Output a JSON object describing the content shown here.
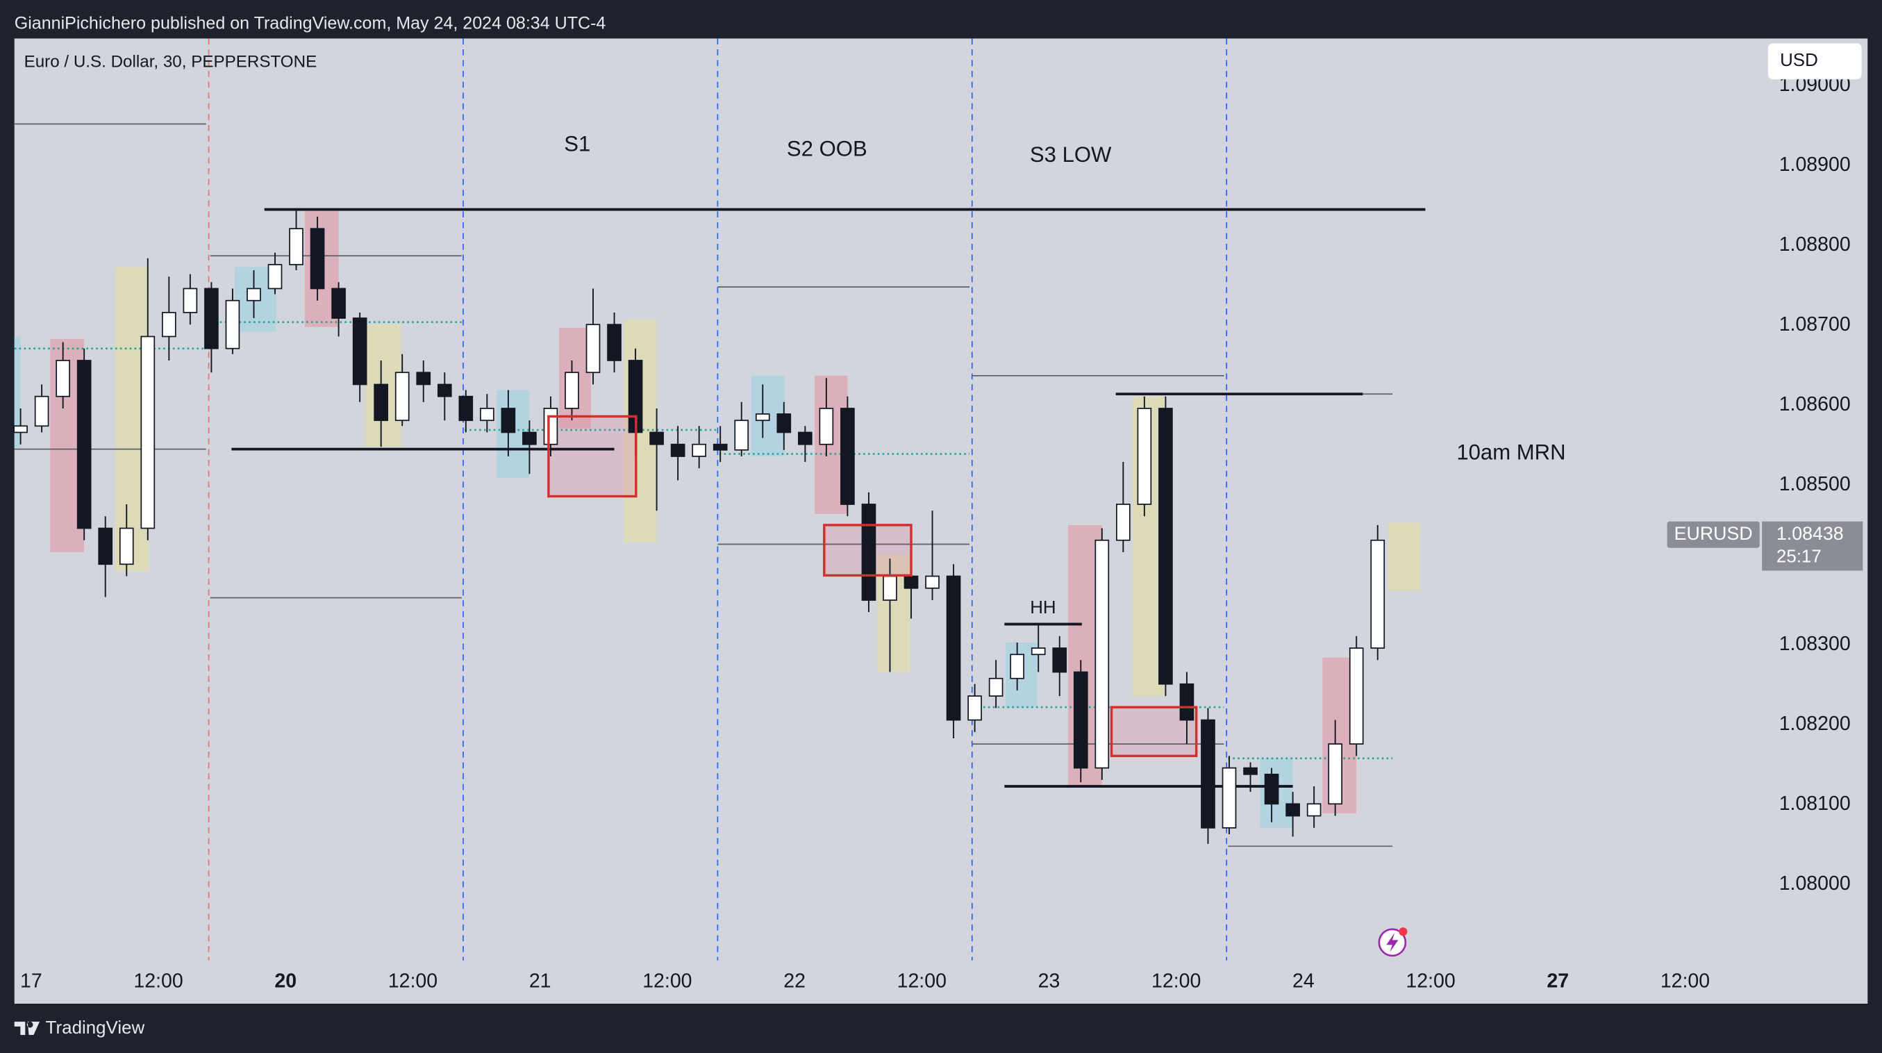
{
  "header": {
    "publisher": "GianniPichichero published on TradingView.com, May 24, 2024 08:34 UTC-4",
    "brand": "TradingView"
  },
  "chart_data": {
    "type": "candlestick",
    "title": "Euro / U.S. Dollar, 30, PEPPERSTONE",
    "currency": "USD",
    "symbol": "EURUSD",
    "last_price": 1.08438,
    "countdown": "25:17",
    "up_color": "#ffffff",
    "down_color": "#131722",
    "xlim": [
      -1.58,
      163.25
    ],
    "ylim": [
      1.07905,
      1.09059
    ],
    "xticks": [
      {
        "value": 0,
        "label": "17"
      },
      {
        "value": 12,
        "label": "12:00"
      },
      {
        "value": 24,
        "label": "20",
        "bold": true
      },
      {
        "value": 36,
        "label": "12:00"
      },
      {
        "value": 48,
        "label": "21"
      },
      {
        "value": 60,
        "label": "12:00"
      },
      {
        "value": 72,
        "label": "22"
      },
      {
        "value": 84,
        "label": "12:00"
      },
      {
        "value": 96,
        "label": "23"
      },
      {
        "value": 108,
        "label": "12:00"
      },
      {
        "value": 120,
        "label": "24"
      },
      {
        "value": 132,
        "label": "12:00"
      },
      {
        "value": 144,
        "label": "27",
        "bold": true
      },
      {
        "value": 156,
        "label": "12:00"
      }
    ],
    "yticks": [
      {
        "value": 1.08,
        "label": "1.08000"
      },
      {
        "value": 1.081,
        "label": "1.08100"
      },
      {
        "value": 1.082,
        "label": "1.08200"
      },
      {
        "value": 1.083,
        "label": "1.08300"
      },
      {
        "value": 1.084,
        "label": "1.08400"
      },
      {
        "value": 1.085,
        "label": "1.08500"
      },
      {
        "value": 1.086,
        "label": "1.08600"
      },
      {
        "value": 1.087,
        "label": "1.08700"
      },
      {
        "value": 1.088,
        "label": "1.08800"
      },
      {
        "value": 1.089,
        "label": "1.08900"
      },
      {
        "value": 1.09,
        "label": "1.09000"
      }
    ],
    "x": [
      -1,
      1,
      3,
      5,
      7,
      9,
      11,
      13,
      15,
      17,
      19,
      21,
      23,
      25,
      27,
      29,
      31,
      33,
      35,
      37,
      39,
      41,
      43,
      45,
      47,
      49,
      51,
      53,
      55,
      57,
      59,
      61,
      63,
      65,
      67,
      69,
      71,
      73,
      75,
      77,
      79,
      81,
      83,
      85,
      87,
      89,
      91,
      93,
      95,
      97,
      99,
      101,
      103,
      105,
      107,
      109,
      111,
      113,
      115,
      117,
      119,
      121,
      123,
      125,
      127
    ],
    "open": [
      1.08566,
      1.08574,
      1.08611,
      1.08656,
      1.08446,
      1.08401,
      1.08446,
      1.08686,
      1.08716,
      1.08746,
      1.08671,
      1.08731,
      1.08746,
      1.08776,
      1.08821,
      1.08746,
      1.08709,
      1.08626,
      1.08581,
      1.08641,
      1.08626,
      1.08611,
      1.08581,
      1.08596,
      1.08566,
      1.08551,
      1.08596,
      1.08641,
      1.08701,
      1.08656,
      1.08566,
      1.08551,
      1.08536,
      1.08551,
      1.08544,
      1.08581,
      1.08589,
      1.08566,
      1.08551,
      1.08596,
      1.08476,
      1.08356,
      1.08386,
      1.08371,
      1.08386,
      1.08206,
      1.08236,
      1.08258,
      1.08288,
      1.08296,
      1.08266,
      1.08146,
      1.08431,
      1.08476,
      1.08596,
      1.08251,
      1.08206,
      1.08071,
      1.08146,
      1.08138,
      1.08101,
      1.08086,
      1.08101,
      1.08176,
      1.08296
    ],
    "high": [
      1.08596,
      1.08626,
      1.08679,
      1.08671,
      1.08461,
      1.08476,
      1.08784,
      1.08761,
      1.08764,
      1.08754,
      1.08746,
      1.08769,
      1.08791,
      1.08844,
      1.08836,
      1.08754,
      1.08716,
      1.08656,
      1.08664,
      1.08656,
      1.08641,
      1.08619,
      1.08614,
      1.08619,
      1.08581,
      1.08611,
      1.08656,
      1.08746,
      1.08716,
      1.08671,
      1.08596,
      1.08574,
      1.08574,
      1.08574,
      1.08604,
      1.08626,
      1.08604,
      1.08574,
      1.08634,
      1.08611,
      1.08491,
      1.08408,
      1.08416,
      1.08468,
      1.08401,
      1.08251,
      1.08281,
      1.08303,
      1.08326,
      1.08311,
      1.08281,
      1.08446,
      1.08529,
      1.08611,
      1.08611,
      1.08266,
      1.08221,
      1.08161,
      1.08153,
      1.08146,
      1.08116,
      1.08123,
      1.08206,
      1.08311,
      1.0845
    ],
    "low": [
      1.08551,
      1.08566,
      1.08596,
      1.08431,
      1.0836,
      1.08386,
      1.08431,
      1.08656,
      1.08701,
      1.08641,
      1.08664,
      1.08709,
      1.08739,
      1.08769,
      1.08731,
      1.08686,
      1.08604,
      1.08548,
      1.08574,
      1.08604,
      1.08581,
      1.08566,
      1.08566,
      1.08536,
      1.08514,
      1.08536,
      1.08581,
      1.08626,
      1.08641,
      1.08536,
      1.08468,
      1.08506,
      1.08521,
      1.08529,
      1.08536,
      1.08559,
      1.08544,
      1.08529,
      1.08536,
      1.08461,
      1.08341,
      1.08266,
      1.08333,
      1.08356,
      1.08183,
      1.08191,
      1.08221,
      1.08243,
      1.08266,
      1.08236,
      1.08128,
      1.08131,
      1.08416,
      1.08461,
      1.08236,
      1.08176,
      1.08051,
      1.08063,
      1.08116,
      1.08078,
      1.0806,
      1.08071,
      1.08086,
      1.08161,
      1.08281
    ],
    "close": [
      1.08574,
      1.08611,
      1.08656,
      1.08446,
      1.08401,
      1.08446,
      1.08686,
      1.08716,
      1.08746,
      1.08671,
      1.08731,
      1.08746,
      1.08776,
      1.08821,
      1.08746,
      1.08709,
      1.08626,
      1.08581,
      1.08641,
      1.08626,
      1.08611,
      1.08581,
      1.08596,
      1.08566,
      1.08551,
      1.08596,
      1.08641,
      1.08701,
      1.08656,
      1.08566,
      1.08551,
      1.08536,
      1.08551,
      1.08544,
      1.08581,
      1.08589,
      1.08566,
      1.08551,
      1.08596,
      1.08476,
      1.08356,
      1.08386,
      1.08371,
      1.08386,
      1.08206,
      1.08236,
      1.08258,
      1.08288,
      1.08296,
      1.08266,
      1.08146,
      1.08431,
      1.08476,
      1.08596,
      1.08251,
      1.08206,
      1.08071,
      1.08146,
      1.08138,
      1.08101,
      1.08086,
      1.08101,
      1.08176,
      1.08296,
      1.08431
    ],
    "session_breaks": [
      {
        "x": 16.75,
        "color": "#e57373"
      },
      {
        "x": 40.75,
        "color": "#2962ff"
      },
      {
        "x": 64.75,
        "color": "#2962ff"
      },
      {
        "x": 88.75,
        "color": "#2962ff"
      },
      {
        "x": 112.75,
        "color": "#2962ff"
      }
    ],
    "levels": [
      {
        "price": 1.08952,
        "from": -1.58,
        "to": 16.5,
        "style": "thin"
      },
      {
        "price": 1.08845,
        "from": 22,
        "to": 131.5,
        "style": "thick"
      },
      {
        "price": 1.08787,
        "from": 16.9,
        "to": 40.6,
        "style": "thin"
      },
      {
        "price": 1.08545,
        "from": -1.58,
        "to": 16.5,
        "style": "thin"
      },
      {
        "price": 1.08545,
        "from": 18.9,
        "to": 55,
        "style": "thick"
      },
      {
        "price": 1.08359,
        "from": 16.9,
        "to": 40.6,
        "style": "thin"
      },
      {
        "price": 1.08748,
        "from": 64.75,
        "to": 88.5,
        "style": "thin"
      },
      {
        "price": 1.08426,
        "from": 64.75,
        "to": 88.5,
        "style": "thin"
      },
      {
        "price": 1.08637,
        "from": 88.75,
        "to": 112.5,
        "style": "thin"
      },
      {
        "price": 1.08614,
        "from": 102.3,
        "to": 125.6,
        "style": "thick"
      },
      {
        "price": 1.08614,
        "from": 125.6,
        "to": 128.4,
        "style": "thin"
      },
      {
        "price": 1.08176,
        "from": 88.75,
        "to": 112.5,
        "style": "thin"
      },
      {
        "price": 1.08326,
        "from": 91.8,
        "to": 99.1,
        "style": "thick"
      },
      {
        "price": 1.08123,
        "from": 91.8,
        "to": 119,
        "style": "thick"
      },
      {
        "price": 1.08048,
        "from": 112.9,
        "to": 128.4,
        "style": "thin"
      },
      {
        "price": 1.08671,
        "from": -1.58,
        "to": 16.5,
        "style": "dotted"
      },
      {
        "price": 1.08704,
        "from": 16.9,
        "to": 40.6,
        "style": "dotted"
      },
      {
        "price": 1.08569,
        "from": 40.9,
        "to": 64.6,
        "style": "dotted"
      },
      {
        "price": 1.08539,
        "from": 64.9,
        "to": 88.5,
        "style": "dotted"
      },
      {
        "price": 1.08222,
        "from": 88.9,
        "to": 112.5,
        "style": "dotted"
      },
      {
        "price": 1.08158,
        "from": 112.9,
        "to": 128.4,
        "style": "dotted"
      }
    ],
    "zones": [
      {
        "from": -1.58,
        "to": -1,
        "low": 1.08547,
        "high": 1.08686,
        "color": "#b4d3e0"
      },
      {
        "from": 1.8,
        "to": 5,
        "low": 1.08416,
        "high": 1.08683,
        "color": "#dbb0bb"
      },
      {
        "from": 7.9,
        "to": 11.1,
        "low": 1.08392,
        "high": 1.08773,
        "color": "#dcdab8"
      },
      {
        "from": 19.2,
        "to": 23.1,
        "low": 1.08692,
        "high": 1.08773,
        "color": "#b4d3e0"
      },
      {
        "from": 25.8,
        "to": 29,
        "low": 1.08698,
        "high": 1.08844,
        "color": "#dbb0bb"
      },
      {
        "from": 31.5,
        "to": 34.9,
        "low": 1.08548,
        "high": 1.08701,
        "color": "#dcdab8"
      },
      {
        "from": 43.9,
        "to": 47,
        "low": 1.08509,
        "high": 1.08619,
        "color": "#b4d3e0"
      },
      {
        "from": 49.8,
        "to": 52.8,
        "low": 1.08571,
        "high": 1.08697,
        "color": "#dbb0bb"
      },
      {
        "from": 55.9,
        "to": 59,
        "low": 1.08428,
        "high": 1.08707,
        "color": "#dcdab8"
      },
      {
        "from": 67.9,
        "to": 71.1,
        "low": 1.08536,
        "high": 1.08637,
        "color": "#b4d3e0"
      },
      {
        "from": 73.9,
        "to": 77,
        "low": 1.08464,
        "high": 1.08637,
        "color": "#dbb0bb"
      },
      {
        "from": 79.8,
        "to": 82.9,
        "low": 1.08266,
        "high": 1.08413,
        "color": "#dcdab8"
      },
      {
        "from": 91.9,
        "to": 94.9,
        "low": 1.08221,
        "high": 1.08303,
        "color": "#b4d3e0"
      },
      {
        "from": 97.8,
        "to": 101,
        "low": 1.08123,
        "high": 1.0845,
        "color": "#dbb0bb"
      },
      {
        "from": 103.9,
        "to": 106.9,
        "low": 1.08236,
        "high": 1.08611,
        "color": "#dcdab8"
      },
      {
        "from": 115.9,
        "to": 119,
        "low": 1.08071,
        "high": 1.08158,
        "color": "#b4d3e0"
      },
      {
        "from": 121.8,
        "to": 125,
        "low": 1.08089,
        "high": 1.08284,
        "color": "#dbb0bb"
      },
      {
        "from": 128,
        "to": 131,
        "low": 1.08368,
        "high": 1.08453,
        "color": "#dcdab8"
      }
    ],
    "boxes": [
      {
        "from": 48.8,
        "to": 57.05,
        "low": 1.08486,
        "high": 1.08586,
        "color": "#d32f2f"
      },
      {
        "from": 74.8,
        "to": 83,
        "low": 1.08387,
        "high": 1.0845,
        "color": "#d32f2f"
      },
      {
        "from": 101.9,
        "to": 109.9,
        "low": 1.08161,
        "high": 1.08222,
        "color": "#d32f2f"
      }
    ],
    "annotations": [
      "S1",
      "S2 OOB",
      "S3 LOW",
      "10am MRN",
      "HH"
    ]
  }
}
